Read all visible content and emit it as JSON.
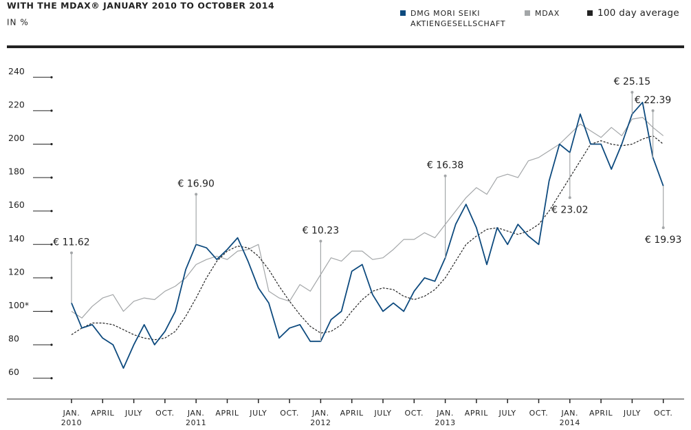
{
  "chart_data": {
    "type": "line",
    "title": "WITH THE MDAX® JANUARY 2010 TO OCTOBER 2014",
    "subtitle": "IN %",
    "xlim": [
      0,
      58
    ],
    "xticks": [
      {
        "value": 0,
        "label": "JAN. 2010"
      },
      {
        "value": 3,
        "label": "APRIL"
      },
      {
        "value": 6,
        "label": "JULY"
      },
      {
        "value": 9,
        "label": "OCT."
      },
      {
        "value": 12,
        "label": "JAN. 2011"
      },
      {
        "value": 15,
        "label": "APRIL"
      },
      {
        "value": 18,
        "label": "JULY"
      },
      {
        "value": 21,
        "label": "OCT."
      },
      {
        "value": 24,
        "label": "JAN. 2012"
      },
      {
        "value": 27,
        "label": "APRIL"
      },
      {
        "value": 30,
        "label": "JULY"
      },
      {
        "value": 33,
        "label": "OCT."
      },
      {
        "value": 36,
        "label": "JAN. 2013"
      },
      {
        "value": 39,
        "label": "APRIL"
      },
      {
        "value": 42,
        "label": "JULY"
      },
      {
        "value": 45,
        "label": "OCT."
      },
      {
        "value": 48,
        "label": "JAN. 2014"
      },
      {
        "value": 51,
        "label": "APRIL"
      },
      {
        "value": 54,
        "label": "JULY"
      },
      {
        "value": 57,
        "label": "OCT."
      }
    ],
    "ylim": [
      50,
      250
    ],
    "yticks": [
      60,
      80,
      {
        "value": 100,
        "label": "100*"
      },
      120,
      140,
      160,
      180,
      200,
      220,
      240
    ],
    "x": [
      0,
      1,
      2,
      3,
      4,
      5,
      6,
      7,
      8,
      9,
      10,
      11,
      12,
      13,
      14,
      15,
      16,
      17,
      18,
      19,
      20,
      21,
      22,
      23,
      24,
      25,
      26,
      27,
      28,
      29,
      30,
      31,
      32,
      33,
      34,
      35,
      36,
      37,
      38,
      39,
      40,
      41,
      42,
      43,
      44,
      45,
      46,
      47,
      48,
      49,
      50,
      51,
      52,
      53,
      54,
      55,
      56,
      57
    ],
    "series": [
      {
        "name": "MDAX",
        "color": "#a3a6a8",
        "dash": false,
        "values": [
          100,
          96,
          103,
          108,
          110,
          100,
          106,
          108,
          107,
          112,
          115,
          120,
          128,
          131,
          133,
          131,
          136,
          137,
          140,
          112,
          108,
          106,
          116,
          112,
          122,
          132,
          130,
          136,
          136,
          131,
          132,
          137,
          143,
          143,
          147,
          144,
          152,
          160,
          168,
          174,
          170,
          180,
          182,
          180,
          190,
          192,
          196,
          200,
          206,
          212,
          208,
          204,
          210,
          205,
          215,
          216,
          210,
          205
        ]
      },
      {
        "name": "100 day average",
        "color": "#222222",
        "dash": true,
        "values": [
          86,
          90,
          93,
          93,
          92,
          89,
          86,
          84,
          83,
          84,
          88,
          97,
          108,
          120,
          130,
          136,
          139,
          138,
          133,
          125,
          115,
          106,
          98,
          91,
          87,
          88,
          92,
          100,
          107,
          112,
          114,
          113,
          109,
          107,
          109,
          113,
          120,
          130,
          140,
          145,
          149,
          150,
          148,
          146,
          148,
          152,
          160,
          170,
          180,
          190,
          200,
          202,
          200,
          199,
          200,
          203,
          205,
          200
        ]
      },
      {
        "name": "DMG MORI SEIKI AKTIENGESELLSCHAFT",
        "color": "#0d4a7e",
        "dash": false,
        "values": [
          105,
          90,
          92,
          84,
          80,
          66,
          80,
          92,
          80,
          88,
          100,
          125,
          140,
          138,
          131,
          137,
          144,
          130,
          114,
          105,
          84,
          90,
          92,
          82,
          82,
          95,
          100,
          124,
          128,
          110,
          100,
          105,
          100,
          112,
          120,
          118,
          132,
          152,
          164,
          150,
          128,
          150,
          140,
          152,
          145,
          140,
          178,
          200,
          195,
          218,
          200,
          200,
          185,
          200,
          218,
          225,
          192,
          175
        ]
      }
    ],
    "legend_order": [
      2,
      0,
      1
    ],
    "annotations": [
      {
        "text": "€ 11.62",
        "x": 0,
        "y": 135
      },
      {
        "text": "€ 16.90",
        "x": 12,
        "y": 170
      },
      {
        "text": "€ 10.23",
        "x": 24,
        "y": 142
      },
      {
        "text": "€ 16.38",
        "x": 36,
        "y": 181
      },
      {
        "text": "€ 23.02",
        "x": 48,
        "y": 168
      },
      {
        "text": "€ 25.15",
        "x": 54,
        "y": 231
      },
      {
        "text": "€ 22.39",
        "x": 56,
        "y": 220
      },
      {
        "text": "€ 19.93",
        "x": 57,
        "y": 150
      }
    ]
  }
}
